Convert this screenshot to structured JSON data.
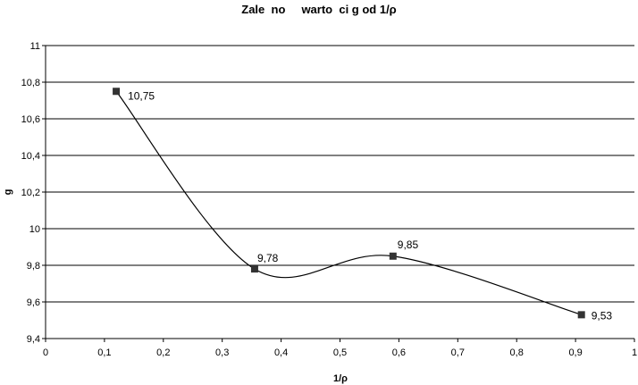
{
  "chart_data": {
    "type": "line",
    "title": "Zale  no     warto  ci g od 1/ρ",
    "xlabel": "1/ρ",
    "ylabel": "g",
    "xlim": [
      0,
      1
    ],
    "ylim": [
      9.4,
      11
    ],
    "x_ticks": [
      "0",
      "0,1",
      "0,2",
      "0,3",
      "0,4",
      "0,5",
      "0,6",
      "0,7",
      "0,8",
      "0,9",
      "1"
    ],
    "y_ticks": [
      "9,4",
      "9,6",
      "9,8",
      "10",
      "10,2",
      "10,4",
      "10,6",
      "10,8",
      "11"
    ],
    "grid": "horizontal",
    "series": [
      {
        "x": [
          0.12,
          0.355,
          0.59,
          0.91
        ],
        "y": [
          10.75,
          9.78,
          9.85,
          9.53
        ],
        "labels": [
          "10,75",
          "9,78",
          "9,85",
          "9,53"
        ],
        "color": "#000000",
        "marker": "square",
        "marker_color": "#333333"
      }
    ]
  }
}
